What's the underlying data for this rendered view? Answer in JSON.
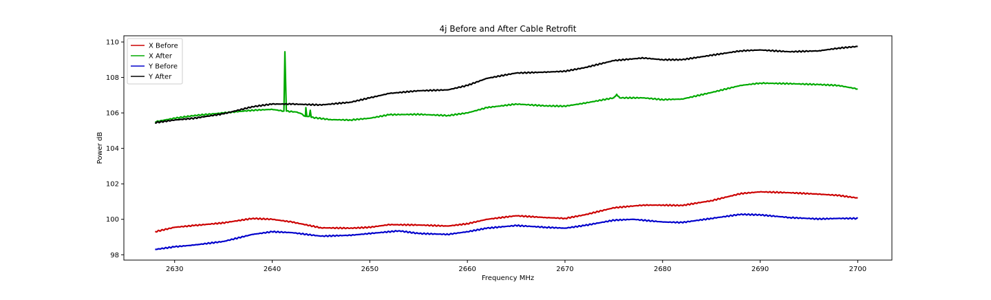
{
  "chart_data": {
    "type": "line",
    "title": "4j Before and After Cable Retrofit",
    "xlabel": "Frequency MHz",
    "ylabel": "Power dB",
    "xlim": [
      2624.8,
      2703.5
    ],
    "ylim": [
      97.7,
      110.35
    ],
    "xticks": [
      2630,
      2640,
      2650,
      2660,
      2670,
      2680,
      2690,
      2700
    ],
    "yticks": [
      98,
      100,
      102,
      104,
      106,
      108,
      110
    ],
    "grid": false,
    "legend_position": "upper-left",
    "series": [
      {
        "name": "X Before",
        "color": "#cc0000",
        "points": [
          [
            2628,
            99.3
          ],
          [
            2630,
            99.55
          ],
          [
            2632,
            99.65
          ],
          [
            2635,
            99.8
          ],
          [
            2638,
            100.05
          ],
          [
            2640,
            100.0
          ],
          [
            2642,
            99.85
          ],
          [
            2645,
            99.52
          ],
          [
            2648,
            99.5
          ],
          [
            2650,
            99.55
          ],
          [
            2652,
            99.7
          ],
          [
            2655,
            99.68
          ],
          [
            2658,
            99.62
          ],
          [
            2660,
            99.75
          ],
          [
            2662,
            100.0
          ],
          [
            2665,
            100.2
          ],
          [
            2668,
            100.1
          ],
          [
            2670,
            100.05
          ],
          [
            2672,
            100.25
          ],
          [
            2675,
            100.65
          ],
          [
            2678,
            100.8
          ],
          [
            2680,
            100.8
          ],
          [
            2682,
            100.78
          ],
          [
            2685,
            101.05
          ],
          [
            2688,
            101.45
          ],
          [
            2690,
            101.55
          ],
          [
            2693,
            101.5
          ],
          [
            2696,
            101.42
          ],
          [
            2698,
            101.35
          ],
          [
            2700,
            101.2
          ]
        ]
      },
      {
        "name": "X After",
        "color": "#00aa00",
        "points": [
          [
            2628,
            105.5
          ],
          [
            2630,
            105.7
          ],
          [
            2632,
            105.85
          ],
          [
            2635,
            106.0
          ],
          [
            2638,
            106.15
          ],
          [
            2640,
            106.2
          ],
          [
            2641.2,
            106.1
          ],
          [
            2641.3,
            109.45
          ],
          [
            2641.45,
            106.1
          ],
          [
            2642.5,
            106.05
          ],
          [
            2643,
            105.95
          ],
          [
            2643.4,
            105.8
          ],
          [
            2643.45,
            106.3
          ],
          [
            2643.55,
            105.8
          ],
          [
            2643.8,
            105.8
          ],
          [
            2643.9,
            106.15
          ],
          [
            2644,
            105.75
          ],
          [
            2646,
            105.62
          ],
          [
            2648,
            105.6
          ],
          [
            2650,
            105.7
          ],
          [
            2652,
            105.9
          ],
          [
            2655,
            105.92
          ],
          [
            2658,
            105.85
          ],
          [
            2660,
            106.0
          ],
          [
            2662,
            106.3
          ],
          [
            2665,
            106.5
          ],
          [
            2668,
            106.4
          ],
          [
            2670,
            106.38
          ],
          [
            2672,
            106.55
          ],
          [
            2675,
            106.85
          ],
          [
            2675.3,
            107.05
          ],
          [
            2675.6,
            106.85
          ],
          [
            2678,
            106.85
          ],
          [
            2680,
            106.75
          ],
          [
            2682,
            106.78
          ],
          [
            2685,
            107.15
          ],
          [
            2688,
            107.55
          ],
          [
            2690,
            107.68
          ],
          [
            2693,
            107.65
          ],
          [
            2696,
            107.6
          ],
          [
            2698,
            107.55
          ],
          [
            2700,
            107.35
          ]
        ]
      },
      {
        "name": "Y Before",
        "color": "#0000cc",
        "points": [
          [
            2628,
            98.3
          ],
          [
            2630,
            98.45
          ],
          [
            2632,
            98.55
          ],
          [
            2635,
            98.75
          ],
          [
            2638,
            99.15
          ],
          [
            2640,
            99.3
          ],
          [
            2642,
            99.25
          ],
          [
            2645,
            99.05
          ],
          [
            2648,
            99.1
          ],
          [
            2650,
            99.2
          ],
          [
            2653,
            99.35
          ],
          [
            2655,
            99.2
          ],
          [
            2658,
            99.15
          ],
          [
            2660,
            99.3
          ],
          [
            2662,
            99.5
          ],
          [
            2665,
            99.65
          ],
          [
            2668,
            99.55
          ],
          [
            2670,
            99.5
          ],
          [
            2672,
            99.65
          ],
          [
            2675,
            99.95
          ],
          [
            2677,
            100.0
          ],
          [
            2680,
            99.85
          ],
          [
            2682,
            99.82
          ],
          [
            2685,
            100.05
          ],
          [
            2688,
            100.28
          ],
          [
            2690,
            100.25
          ],
          [
            2693,
            100.1
          ],
          [
            2696,
            100.02
          ],
          [
            2698,
            100.05
          ],
          [
            2700,
            100.05
          ]
        ]
      },
      {
        "name": "Y After",
        "color": "#000000",
        "points": [
          [
            2628,
            105.45
          ],
          [
            2630,
            105.6
          ],
          [
            2632,
            105.7
          ],
          [
            2635,
            105.95
          ],
          [
            2638,
            106.35
          ],
          [
            2640,
            106.5
          ],
          [
            2642,
            106.5
          ],
          [
            2645,
            106.45
          ],
          [
            2648,
            106.6
          ],
          [
            2650,
            106.85
          ],
          [
            2652,
            107.1
          ],
          [
            2655,
            107.25
          ],
          [
            2658,
            107.3
          ],
          [
            2660,
            107.55
          ],
          [
            2662,
            107.95
          ],
          [
            2665,
            108.25
          ],
          [
            2668,
            108.3
          ],
          [
            2670,
            108.35
          ],
          [
            2672,
            108.55
          ],
          [
            2675,
            108.95
          ],
          [
            2678,
            109.1
          ],
          [
            2680,
            109.0
          ],
          [
            2682,
            109.0
          ],
          [
            2685,
            109.25
          ],
          [
            2688,
            109.5
          ],
          [
            2690,
            109.55
          ],
          [
            2693,
            109.45
          ],
          [
            2696,
            109.5
          ],
          [
            2698,
            109.65
          ],
          [
            2700,
            109.75
          ]
        ]
      }
    ]
  }
}
